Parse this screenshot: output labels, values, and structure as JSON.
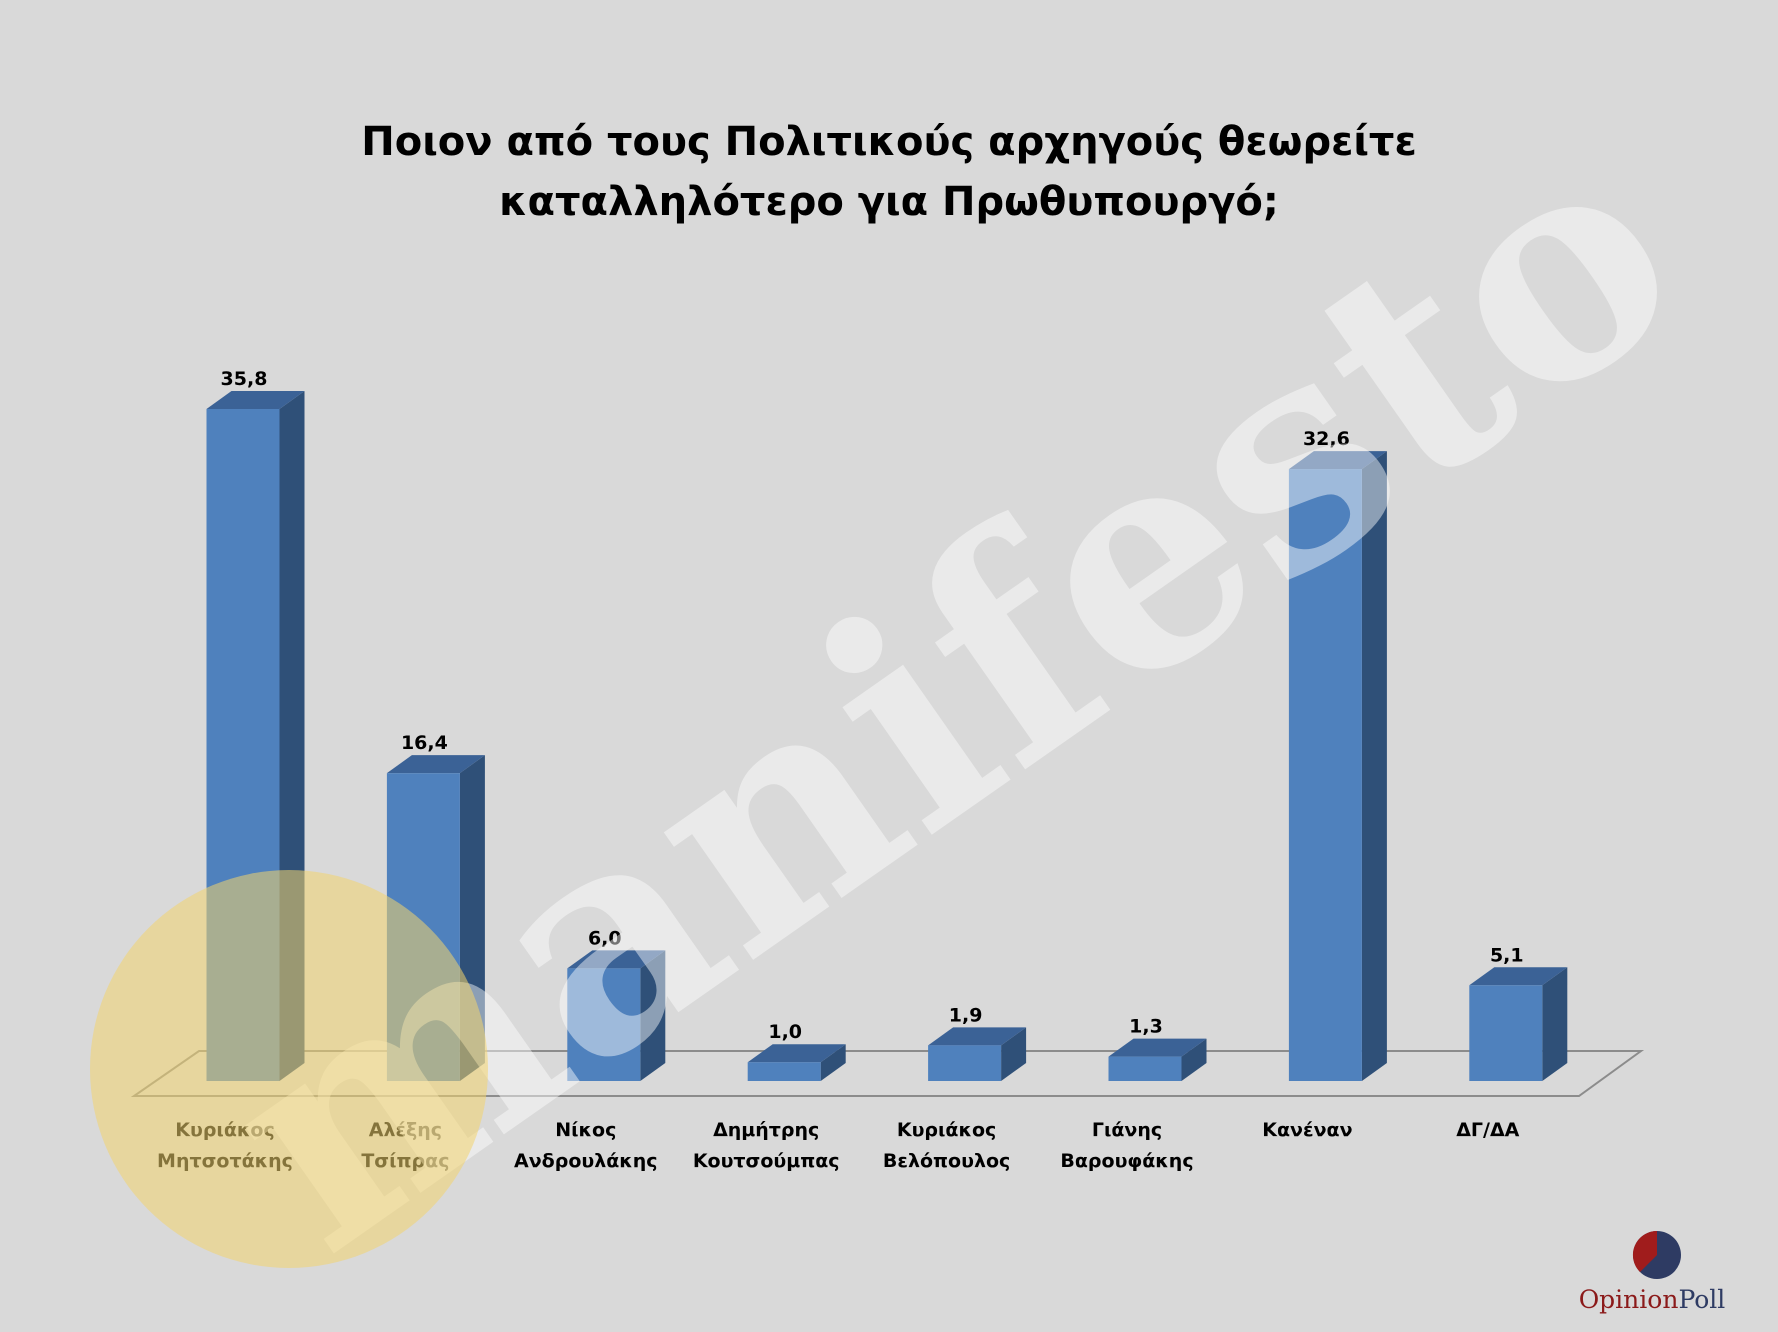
{
  "chart_data": {
    "type": "bar3d",
    "title": "Ποιον από τους Πολιτικούς αρχηγούς θεωρείτε καταλληλότερο για Πρωθυπουργό;",
    "categories": [
      "Κυριάκος Μητσοτάκης",
      "Αλέξης Τσίπρας",
      "Νίκος Ανδρουλάκης",
      "Δημήτρης Κουτσούμπας",
      "Κυριάκος Βελόπουλος",
      "Γιάνης Βαρουφάκης",
      "Κανέναν",
      "ΔΓ/ΔΑ"
    ],
    "values": [
      35.8,
      16.4,
      6.0,
      1.0,
      1.9,
      1.3,
      32.6,
      5.1
    ],
    "value_labels": [
      "35,8",
      "16,4",
      "6,0",
      "1,0",
      "1,9",
      "1,3",
      "32,6",
      "5,1"
    ],
    "color": "#4f81bd"
  },
  "watermark": "manifesto",
  "logo": [
    "Opinion",
    "Poll"
  ]
}
